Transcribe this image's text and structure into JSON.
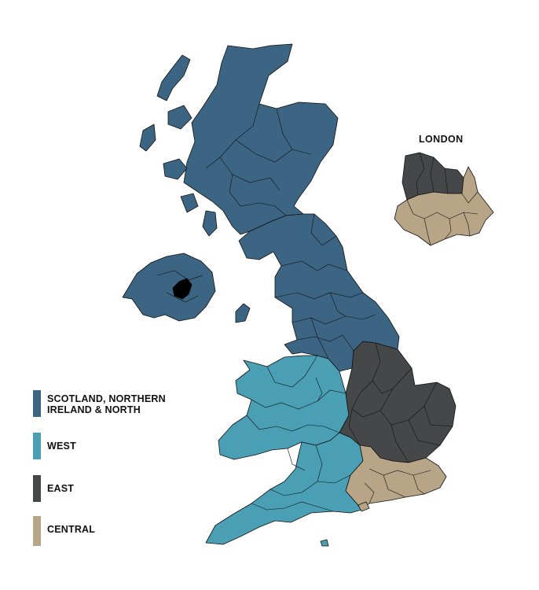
{
  "colors": {
    "north": "#3c6584",
    "west": "#4a9fb5",
    "east": "#464748",
    "central": "#b8a486",
    "outline": "#111111",
    "highlight": "#000000"
  },
  "inset": {
    "title": "LONDON"
  },
  "legend": [
    {
      "label": "SCOTLAND, NORTHERN IRELAND & NORTH",
      "color": "#3c6584"
    },
    {
      "label": "WEST",
      "color": "#4a9fb5"
    },
    {
      "label": "EAST",
      "color": "#464748"
    },
    {
      "label": "CENTRAL",
      "color": "#b8a486"
    }
  ]
}
